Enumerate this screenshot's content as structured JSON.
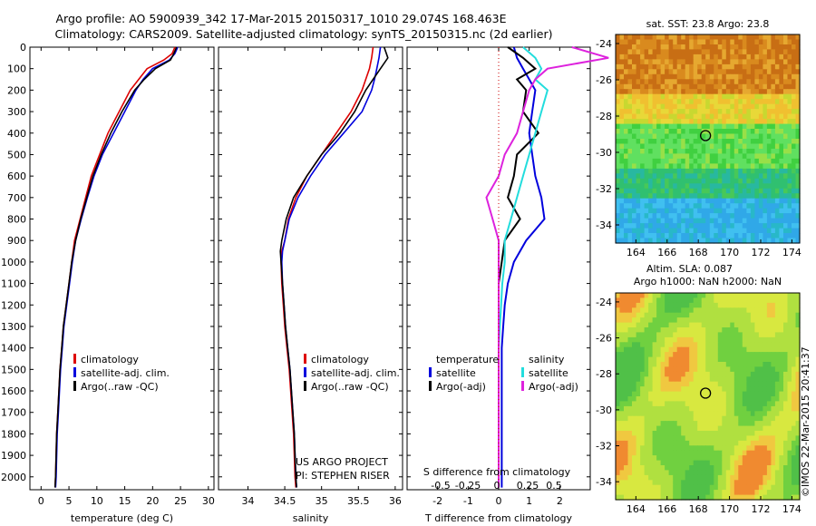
{
  "title_line1": "Argo profile: AO 5900939_342 17-Mar-2015 20150317_1010 29.074S 168.463E",
  "title_line2": "Climatology: CARS2009. Satellite-adjusted climatology: synTS_20150315.nc (2d earlier)",
  "colors": {
    "red": "#dd0000",
    "blue": "#0000dd",
    "black": "#000000",
    "cyan": "#22dddd",
    "magenta": "#dd22dd"
  },
  "chart_data": [
    {
      "type": "line",
      "xlabel": "temperature (deg C)",
      "ylabel": "",
      "xlim": [
        -2,
        31
      ],
      "ylim": [
        2060,
        0
      ],
      "xticks": [
        0,
        5,
        10,
        15,
        20,
        25,
        30
      ],
      "yticks": [
        0,
        100,
        200,
        300,
        400,
        500,
        600,
        700,
        800,
        900,
        1000,
        1100,
        1200,
        1300,
        1400,
        1500,
        1600,
        1700,
        1800,
        1900,
        2000
      ],
      "legend": [
        "climatology",
        "satellite-adj. clim.",
        "Argo(..raw -QC)"
      ],
      "series": [
        {
          "name": "climatology",
          "color": "red",
          "x": [
            24,
            23.5,
            22,
            19,
            17.5,
            16,
            14,
            12,
            10.5,
            9,
            8,
            7,
            6,
            5.5,
            5,
            4.5,
            4,
            3.7,
            3.4,
            3.2,
            3.0,
            2.8,
            2.7,
            2.6,
            2.5
          ],
          "y": [
            0,
            30,
            60,
            100,
            150,
            200,
            300,
            400,
            500,
            600,
            700,
            800,
            900,
            1000,
            1100,
            1200,
            1300,
            1400,
            1500,
            1600,
            1700,
            1800,
            1900,
            2000,
            2050
          ]
        },
        {
          "name": "satellite-adj. clim.",
          "color": "blue",
          "x": [
            24.5,
            24,
            23,
            20,
            18.3,
            17,
            15,
            13,
            11,
            9.5,
            8.3,
            7.2,
            6.2,
            5.6,
            5.1,
            4.6,
            4.1,
            3.8,
            3.5,
            3.3,
            3.1,
            2.9,
            2.8,
            2.7,
            2.6
          ],
          "y": [
            0,
            30,
            60,
            100,
            150,
            200,
            300,
            400,
            500,
            600,
            700,
            800,
            900,
            1000,
            1100,
            1200,
            1300,
            1400,
            1500,
            1600,
            1700,
            1800,
            1900,
            2000,
            2050
          ]
        },
        {
          "name": "Argo(..raw -QC)",
          "color": "black",
          "x": [
            24.3,
            23.8,
            23.2,
            20.5,
            18.5,
            16.8,
            14.5,
            12.5,
            10.8,
            9.3,
            8.2,
            7.1,
            6.2,
            5.5,
            5.0,
            4.5,
            4.0,
            3.7,
            3.4,
            3.2,
            3.0,
            2.8,
            2.7,
            2.6,
            2.5
          ],
          "y": [
            0,
            30,
            60,
            100,
            150,
            200,
            300,
            400,
            500,
            600,
            700,
            800,
            900,
            1000,
            1100,
            1200,
            1300,
            1400,
            1500,
            1600,
            1700,
            1800,
            1900,
            2000,
            2050
          ]
        }
      ]
    },
    {
      "type": "line",
      "xlabel": "salinity",
      "xlim": [
        33.6,
        36.1
      ],
      "ylim": [
        2060,
        0
      ],
      "xticks": [
        34,
        34.5,
        35,
        35.5,
        36
      ],
      "legend": [
        "climatology",
        "satellite-adj. clim.",
        "Argo(..raw -QC)"
      ],
      "series": [
        {
          "name": "climatology",
          "color": "red",
          "x": [
            35.7,
            35.68,
            35.65,
            35.6,
            35.55,
            35.4,
            35.2,
            35.0,
            34.8,
            34.65,
            34.55,
            34.5,
            34.46,
            34.45,
            34.46,
            34.48,
            34.5,
            34.53,
            34.56,
            34.58,
            34.6,
            34.62,
            34.63,
            34.64,
            34.65
          ],
          "y": [
            0,
            50,
            100,
            150,
            200,
            300,
            400,
            500,
            600,
            700,
            800,
            900,
            950,
            1000,
            1100,
            1200,
            1300,
            1400,
            1500,
            1600,
            1700,
            1800,
            1900,
            2000,
            2050
          ]
        },
        {
          "name": "satellite-adj. clim.",
          "color": "blue",
          "x": [
            35.8,
            35.78,
            35.75,
            35.72,
            35.68,
            35.55,
            35.3,
            35.05,
            34.85,
            34.68,
            34.56,
            34.5,
            34.47,
            34.46,
            34.47,
            34.49,
            34.51,
            34.54,
            34.57,
            34.59,
            34.61,
            34.63,
            34.64,
            34.65,
            34.66
          ],
          "y": [
            0,
            50,
            100,
            150,
            200,
            300,
            400,
            500,
            600,
            700,
            800,
            900,
            950,
            1000,
            1100,
            1200,
            1300,
            1400,
            1500,
            1600,
            1700,
            1800,
            1900,
            2000,
            2050
          ]
        },
        {
          "name": "Argo(..raw -QC)",
          "color": "black",
          "x": [
            35.85,
            35.9,
            35.8,
            35.7,
            35.6,
            35.45,
            35.25,
            35.0,
            34.8,
            34.62,
            34.52,
            34.46,
            34.44,
            34.45,
            34.47,
            34.49,
            34.51,
            34.54,
            34.57,
            34.59,
            34.61,
            34.63,
            34.64,
            34.65,
            34.66
          ],
          "y": [
            0,
            50,
            100,
            150,
            200,
            300,
            400,
            500,
            600,
            700,
            800,
            900,
            950,
            1000,
            1100,
            1200,
            1300,
            1400,
            1500,
            1600,
            1700,
            1800,
            1900,
            2000,
            2050
          ]
        }
      ],
      "annotation": [
        "US ARGO PROJECT",
        "PI: STEPHEN RISER"
      ]
    },
    {
      "type": "line",
      "xlabel_top": "S difference from climatology",
      "xticks_top": [
        "-0.5",
        "-0.25",
        "0",
        "0.25",
        "0.5"
      ],
      "xlabel": "T difference from climatology",
      "xlim": [
        -3,
        3
      ],
      "ylim": [
        2060,
        0
      ],
      "xticks": [
        -2,
        -1,
        0,
        1,
        2
      ],
      "legend_left_title": "temperature",
      "legend_right_title": "salinity",
      "legend": [
        "satellite",
        "Argo(-adj)",
        "satellite",
        "Argo(-adj)"
      ],
      "series": [
        {
          "name": "satellite",
          "group": "temperature",
          "color": "blue",
          "x": [
            0.5,
            0.6,
            0.8,
            1.0,
            1.2,
            1.1,
            1.0,
            1.1,
            1.2,
            1.4,
            1.5,
            0.9,
            0.5,
            0.3,
            0.2,
            0.15,
            0.1,
            0.1,
            0.1,
            0.1,
            0.1,
            0.1,
            0.1,
            0.1
          ],
          "y": [
            0,
            50,
            100,
            150,
            200,
            300,
            400,
            500,
            600,
            700,
            800,
            900,
            1000,
            1100,
            1200,
            1300,
            1400,
            1500,
            1600,
            1700,
            1800,
            1900,
            2000,
            2050
          ]
        },
        {
          "name": "Argo(-adj)",
          "group": "temperature",
          "color": "black",
          "x": [
            0.3,
            0.8,
            1.2,
            0.6,
            0.9,
            0.8,
            1.3,
            0.6,
            0.5,
            0.3,
            0.7,
            0.2,
            0.1,
            0.0,
            0.0,
            0.0,
            0.0,
            0.0,
            0.0,
            0.0,
            0.0,
            0.0,
            0.0,
            0.0
          ],
          "y": [
            0,
            50,
            100,
            150,
            200,
            300,
            400,
            500,
            600,
            700,
            800,
            900,
            1000,
            1100,
            1200,
            1300,
            1400,
            1500,
            1600,
            1700,
            1800,
            1900,
            2000,
            2050
          ]
        },
        {
          "name": "satellite",
          "group": "salinity",
          "color": "cyan",
          "x": [
            0.2,
            0.3,
            0.35,
            0.3,
            0.4,
            0.35,
            0.3,
            0.25,
            0.2,
            0.15,
            0.1,
            0.05,
            0.05,
            0.03,
            0.02,
            0.01,
            0.0,
            0.0,
            0.0,
            0.0,
            0.0,
            0.0,
            0.0,
            0.0
          ],
          "y": [
            0,
            50,
            100,
            150,
            200,
            300,
            400,
            500,
            600,
            700,
            800,
            900,
            1000,
            1100,
            1200,
            1300,
            1400,
            1500,
            1600,
            1700,
            1800,
            1900,
            2000,
            2050
          ]
        },
        {
          "name": "Argo(-adj)",
          "group": "salinity",
          "color": "magenta",
          "x": [
            0.6,
            0.9,
            0.4,
            0.3,
            0.25,
            0.2,
            0.15,
            0.05,
            0.0,
            -0.1,
            -0.05,
            0.0,
            0.0,
            0.0,
            0.0,
            0.0,
            0.0,
            0.0,
            0.0,
            0.0,
            0.0,
            0.0,
            0.0,
            0.0
          ],
          "y": [
            0,
            50,
            100,
            150,
            200,
            300,
            400,
            500,
            600,
            700,
            800,
            900,
            1000,
            1100,
            1200,
            1300,
            1400,
            1500,
            1600,
            1700,
            1800,
            1900,
            2000,
            2050
          ]
        }
      ]
    },
    {
      "type": "heatmap",
      "title": "sat. SST: 23.8 Argo: 23.8",
      "xticks": [
        164,
        166,
        168,
        170,
        172,
        174
      ],
      "yticks": [
        -24,
        -26,
        -28,
        -30,
        -32,
        -34
      ],
      "xlim": [
        162.7,
        174.5
      ],
      "ylim": [
        -35,
        -23.5
      ],
      "marker": [
        168.463,
        -29.074
      ]
    },
    {
      "type": "heatmap",
      "title_line1": "Altim. SLA: 0.087",
      "title_line2": "Argo h1000: NaN h2000: NaN",
      "xticks": [
        164,
        166,
        168,
        170,
        172,
        174
      ],
      "yticks": [
        -24,
        -26,
        -28,
        -30,
        -32,
        -34
      ],
      "xlim": [
        162.7,
        174.5
      ],
      "ylim": [
        -35,
        -23.5
      ],
      "marker": [
        168.463,
        -29.074
      ]
    }
  ],
  "side_label": "©IMOS 22-Mar-2015 20:41:37"
}
